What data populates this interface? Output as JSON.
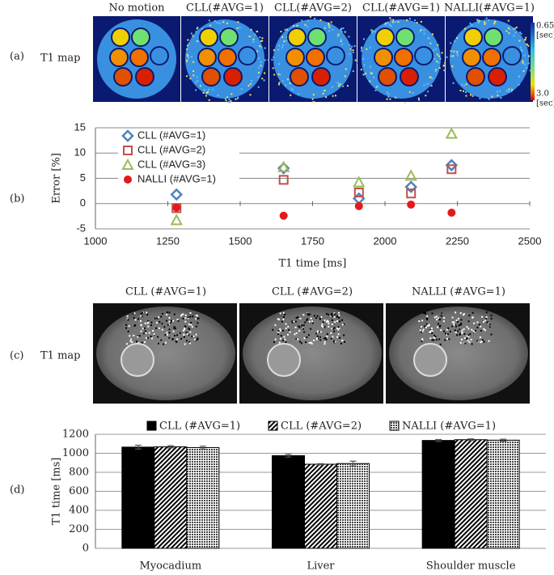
{
  "panels": [
    {
      "label": "(a)",
      "side_label": "T1 map",
      "image_titles": [
        "No motion",
        "CLL(#AVG=1)",
        "CLL(#AVG=2)",
        "CLL(#AVG=1)",
        "NALLI(#AVG=1)"
      ],
      "colorbar": {
        "top": "0.65",
        "top_unit": "[sec]",
        "bottom": "3.0",
        "bottom_unit": "[sec]"
      }
    },
    {
      "label": "(b)"
    },
    {
      "label": "(c)",
      "side_label": "T1 map",
      "image_titles": [
        "CLL (#AVG=1)",
        "CLL (#AVG=2)",
        "NALLI (#AVG=1)"
      ]
    },
    {
      "label": "(d)"
    }
  ],
  "chart_data": [
    {
      "type": "scatter",
      "xlabel": "T1 time [ms]",
      "ylabel": "Error [%]",
      "x": [
        1280,
        1650,
        1910,
        2090,
        2230
      ],
      "xlim": [
        1000,
        2500
      ],
      "xticks": [
        1000,
        1250,
        1500,
        1750,
        2000,
        2250,
        2500
      ],
      "ylim": [
        -5,
        15
      ],
      "yticks": [
        -5,
        0,
        5,
        10,
        15
      ],
      "grid": true,
      "legend": "upper left",
      "series": [
        {
          "name": "CLL (#AVG=1)",
          "color": "#4f81bd",
          "marker": "diamond",
          "values": [
            1.8,
            7.0,
            1.0,
            3.3,
            7.6
          ]
        },
        {
          "name": "CLL (#AVG=2)",
          "color": "#c0504d",
          "marker": "square",
          "values": [
            -0.9,
            4.7,
            2.2,
            2.0,
            6.8
          ]
        },
        {
          "name": "CLL (#AVG=3)",
          "color": "#9bbb59",
          "marker": "triangle",
          "values": [
            -3.3,
            7.2,
            4.2,
            5.5,
            13.8
          ]
        },
        {
          "name": "NALLI (#AVG=1)",
          "color": "#e31a1c",
          "marker": "dot",
          "values": [
            -0.8,
            -2.4,
            -0.5,
            -0.2,
            -1.8
          ]
        }
      ]
    },
    {
      "type": "bar",
      "ylabel": "T1 time [ms]",
      "categories": [
        "Myocadium",
        "Liver",
        "Shoulder muscle"
      ],
      "ylim": [
        0,
        1200
      ],
      "yticks": [
        0,
        200,
        400,
        600,
        800,
        1000,
        1200
      ],
      "grid": true,
      "legend": "top",
      "series": [
        {
          "name": "CLL (#AVG=1)",
          "color": "#000000",
          "pattern": "solid",
          "values": [
            1065,
            975,
            1135
          ],
          "errors": [
            20,
            15,
            10
          ]
        },
        {
          "name": "CLL (#AVG=2)",
          "color": "#000000",
          "pattern": "hatch",
          "values": [
            1068,
            885,
            1143
          ],
          "errors": [
            12,
            6,
            8
          ]
        },
        {
          "name": "NALLI (#AVG=1)",
          "color": "#000000",
          "pattern": "dots",
          "values": [
            1060,
            892,
            1138
          ],
          "errors": [
            15,
            25,
            10
          ]
        }
      ]
    }
  ]
}
